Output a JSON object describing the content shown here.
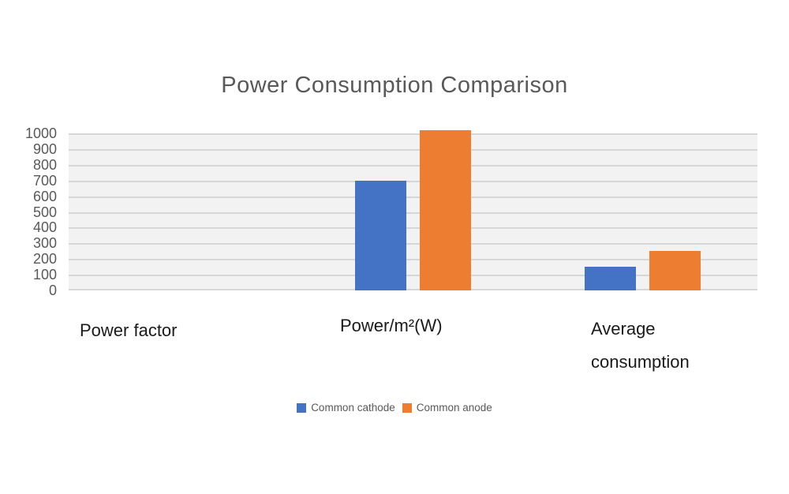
{
  "chart_data": {
    "type": "bar",
    "title": "Power Consumption Comparison",
    "categories": [
      "Power factor",
      "Power/m²(W)",
      "Average consumption"
    ],
    "series": [
      {
        "name": "Common cathode",
        "color": "#4472C4",
        "values": [
          0,
          700,
          150
        ]
      },
      {
        "name": "Common anode",
        "color": "#ED7D31",
        "values": [
          0,
          1020,
          250
        ]
      }
    ],
    "y_ticks": [
      1000,
      900,
      800,
      700,
      600,
      500,
      400,
      300,
      200,
      100,
      0
    ],
    "ylim": [
      0,
      1000
    ],
    "xlabel": "",
    "ylabel": "",
    "grid": true,
    "legend_position": "bottom"
  },
  "colors": {
    "title_text": "#595959",
    "axis_text": "#595959",
    "category_text": "#1a1a1a",
    "legend_text": "#595959",
    "plot_background": "#F2F2F2",
    "gridline": "#D6D6D6",
    "series_blue": "#4472C4",
    "series_orange": "#ED7D31"
  }
}
